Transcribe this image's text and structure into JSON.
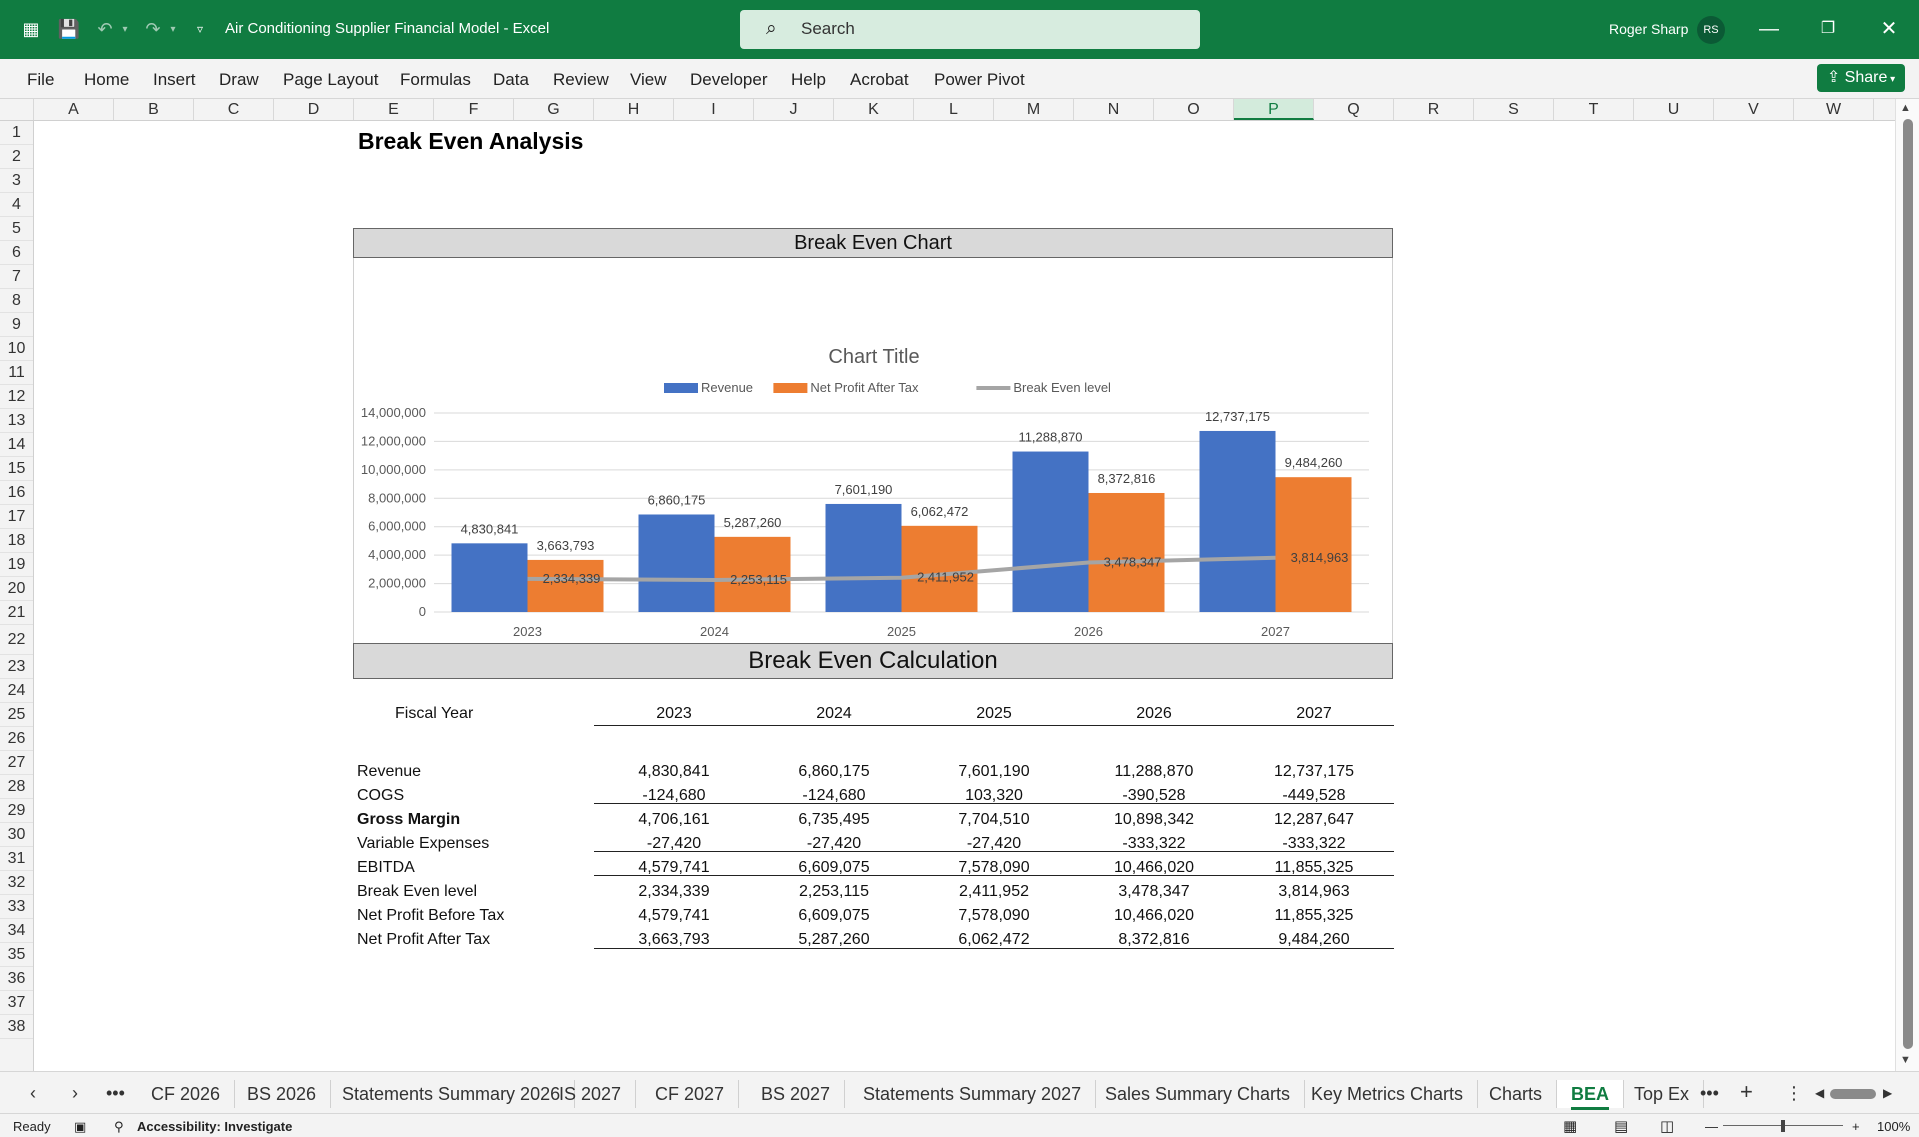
{
  "window": {
    "title": "Air Conditioning Supplier Financial Model  -  Excel",
    "user": "Roger Sharp",
    "initials": "RS"
  },
  "search": {
    "placeholder": "Search"
  },
  "ribbon": {
    "menus": [
      "File",
      "Home",
      "Insert",
      "Draw",
      "Page Layout",
      "Formulas",
      "Data",
      "Review",
      "View",
      "Developer",
      "Help",
      "Acrobat",
      "Power Pivot"
    ],
    "share": "Share"
  },
  "columns": [
    "A",
    "B",
    "C",
    "D",
    "E",
    "F",
    "G",
    "H",
    "I",
    "J",
    "K",
    "L",
    "M",
    "N",
    "O",
    "P",
    "Q",
    "R",
    "S",
    "T",
    "U",
    "V",
    "W"
  ],
  "selected_column": "P",
  "rows": [
    "1",
    "2",
    "3",
    "4",
    "5",
    "6",
    "7",
    "8",
    "9",
    "10",
    "11",
    "12",
    "13",
    "14",
    "15",
    "16",
    "17",
    "18",
    "19",
    "20",
    "21",
    "22",
    "23",
    "24",
    "25",
    "26",
    "27",
    "28",
    "29",
    "30",
    "31",
    "32",
    "33",
    "34",
    "35",
    "36",
    "37",
    "38"
  ],
  "sheet": {
    "title": "Break Even Analysis",
    "chart_banner": "Break Even Chart",
    "calc_banner": "Break Even Calculation",
    "fiscal_year_label": "Fiscal Year",
    "years": [
      "2023",
      "2024",
      "2025",
      "2026",
      "2027"
    ],
    "table": [
      {
        "label": "Revenue",
        "bold": false,
        "values": [
          "4,830,841",
          "6,860,175",
          "7,601,190",
          "11,288,870",
          "12,737,175"
        ]
      },
      {
        "label": "COGS",
        "bold": false,
        "values": [
          "-124,680",
          "-124,680",
          "103,320",
          "-390,528",
          "-449,528"
        ]
      },
      {
        "label": "Gross Margin",
        "bold": true,
        "values": [
          "4,706,161",
          "6,735,495",
          "7,704,510",
          "10,898,342",
          "12,287,647"
        ]
      },
      {
        "label": "Variable Expenses",
        "bold": false,
        "values": [
          "-27,420",
          "-27,420",
          "-27,420",
          "-333,322",
          "-333,322"
        ]
      },
      {
        "label": "EBITDA",
        "bold": false,
        "values": [
          "4,579,741",
          "6,609,075",
          "7,578,090",
          "10,466,020",
          "11,855,325"
        ]
      },
      {
        "label": "Break Even level",
        "bold": false,
        "values": [
          "2,334,339",
          "2,253,115",
          "2,411,952",
          "3,478,347",
          "3,814,963"
        ]
      },
      {
        "label": "Net Profit Before Tax",
        "bold": false,
        "values": [
          "4,579,741",
          "6,609,075",
          "7,578,090",
          "10,466,020",
          "11,855,325"
        ]
      },
      {
        "label": "Net Profit After Tax",
        "bold": false,
        "values": [
          "3,663,793",
          "5,287,260",
          "6,062,472",
          "8,372,816",
          "9,484,260"
        ]
      }
    ]
  },
  "chart_data": {
    "type": "bar",
    "title": "Chart Title",
    "categories": [
      "2023",
      "2024",
      "2025",
      "2026",
      "2027"
    ],
    "series": [
      {
        "name": "Revenue",
        "kind": "bar",
        "color": "#4472c4",
        "values": [
          4830841,
          6860175,
          7601190,
          11288870,
          12737175
        ],
        "labels": [
          "4,830,841",
          "6,860,175",
          "7,601,190",
          "11,288,870",
          "12,737,175"
        ]
      },
      {
        "name": "Net Profit After Tax",
        "kind": "bar",
        "color": "#ed7d31",
        "values": [
          3663793,
          5287260,
          6062472,
          8372816,
          9484260
        ],
        "labels": [
          "3,663,793",
          "5,287,260",
          "6,062,472",
          "8,372,816",
          "9,484,260"
        ]
      },
      {
        "name": "Break Even level",
        "kind": "line",
        "color": "#a5a5a5",
        "values": [
          2334339,
          2253115,
          2411952,
          3478347,
          3814963
        ],
        "labels": [
          "2,334,339",
          "2,253,115",
          "2,411,952",
          "3,478,347",
          "3,814,963"
        ]
      }
    ],
    "ylim": [
      0,
      14000000
    ],
    "yticks": [
      "0",
      "2,000,000",
      "4,000,000",
      "6,000,000",
      "8,000,000",
      "10,000,000",
      "12,000,000",
      "14,000,000"
    ],
    "legend": "top",
    "grid": true
  },
  "tabs": {
    "items": [
      "CF 2026",
      "BS 2026",
      "Statements Summary 2026",
      "IS 2027",
      "CF 2027",
      "BS 2027",
      "Statements Summary 2027",
      "Sales Summary Charts",
      "Key Metrics Charts",
      "Charts",
      "BEA",
      "Top Ex"
    ],
    "active": "BEA"
  },
  "status": {
    "ready": "Ready",
    "accessibility": "Accessibility: Investigate",
    "zoom": "100%"
  }
}
